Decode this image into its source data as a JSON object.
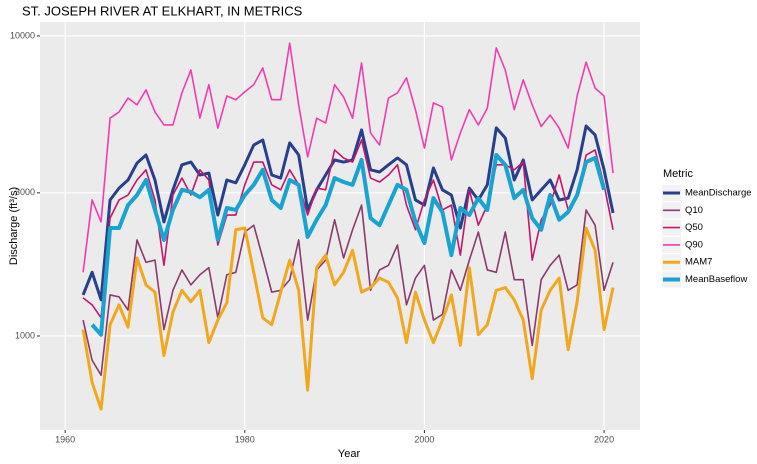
{
  "chart_data": {
    "type": "line",
    "title": "ST. JOSEPH RIVER AT ELKHART, IN  METRICS",
    "x_label": "Year",
    "y_label": "Discharge (ft³/s)",
    "legend_title": "Metric",
    "legend_position": "right",
    "yscale": "log",
    "grid": true,
    "xlim": [
      1957.2,
      2024
    ],
    "ylim": [
      486,
      11130
    ],
    "xticks": [
      1960,
      1980,
      2000,
      2020
    ],
    "yticks": [
      1000,
      3000,
      10000
    ],
    "x": [
      1962,
      1963,
      1964,
      1965,
      1966,
      1967,
      1968,
      1969,
      1970,
      1971,
      1972,
      1973,
      1974,
      1975,
      1976,
      1977,
      1978,
      1979,
      1980,
      1981,
      1982,
      1983,
      1984,
      1985,
      1986,
      1987,
      1988,
      1989,
      1990,
      1991,
      1992,
      1993,
      1994,
      1995,
      1996,
      1997,
      1998,
      1999,
      2000,
      2001,
      2002,
      2003,
      2004,
      2005,
      2006,
      2007,
      2008,
      2009,
      2010,
      2011,
      2012,
      2013,
      2014,
      2015,
      2016,
      2017,
      2018,
      2019,
      2020,
      2021
    ],
    "series": [
      {
        "name": "MeanDischarge",
        "color": "#283f8c",
        "line_width": 3,
        "values": [
          1370,
          1630,
          1320,
          2840,
          3110,
          3310,
          3770,
          4010,
          3310,
          2400,
          3070,
          3720,
          3800,
          3440,
          3490,
          2530,
          3310,
          3240,
          3720,
          4330,
          4500,
          3440,
          3360,
          4400,
          4010,
          2630,
          3070,
          3440,
          3860,
          3800,
          3860,
          4860,
          3580,
          3520,
          3720,
          3920,
          3720,
          2840,
          2730,
          3630,
          3070,
          2950,
          2290,
          3110,
          2840,
          3190,
          4940,
          4570,
          3310,
          3860,
          2840,
          3070,
          3310,
          2840,
          2880,
          3580,
          5010,
          4680,
          3580,
          2570
        ]
      },
      {
        "name": "Q10",
        "color": "#8b3a6e",
        "line_width": 1.6,
        "values": [
          1130,
          830,
          740,
          1370,
          1350,
          1220,
          2090,
          1760,
          1790,
          1050,
          1420,
          1660,
          1480,
          1600,
          1690,
          1150,
          1600,
          1630,
          2220,
          2340,
          1820,
          1400,
          1420,
          1540,
          2090,
          1130,
          1660,
          1790,
          2440,
          1820,
          2260,
          2730,
          1420,
          1660,
          1720,
          2010,
          1270,
          1560,
          1720,
          1130,
          1180,
          1660,
          1420,
          1790,
          2220,
          1660,
          1630,
          2220,
          1540,
          1540,
          930,
          1540,
          1720,
          1860,
          1420,
          1480,
          2630,
          2340,
          1420,
          1760
        ]
      },
      {
        "name": "Q50",
        "color": "#c2186b",
        "line_width": 1.6,
        "values": [
          1340,
          1270,
          1150,
          2470,
          2840,
          2950,
          3310,
          3580,
          2840,
          1720,
          2950,
          3360,
          2950,
          3580,
          3310,
          2010,
          2530,
          2530,
          3190,
          3800,
          3800,
          3190,
          3070,
          3580,
          3190,
          2530,
          3110,
          3070,
          4170,
          3920,
          3800,
          4500,
          3360,
          3260,
          3440,
          3720,
          2730,
          2260,
          2840,
          3310,
          2630,
          2730,
          1860,
          3070,
          2340,
          2730,
          3720,
          3720,
          3580,
          3800,
          1790,
          2440,
          2730,
          3440,
          2630,
          2950,
          4010,
          4170,
          3190,
          2260
        ]
      },
      {
        "name": "Q90",
        "color": "#f03cb4",
        "line_width": 1.6,
        "values": [
          1630,
          2840,
          2400,
          5320,
          5580,
          6210,
          5890,
          6610,
          5580,
          5050,
          5050,
          6460,
          7700,
          5320,
          6880,
          4930,
          6310,
          6130,
          6510,
          6880,
          7820,
          6130,
          6130,
          9460,
          5890,
          3950,
          5320,
          5130,
          6880,
          6260,
          5320,
          8130,
          4750,
          4330,
          6210,
          6460,
          7250,
          5680,
          4230,
          5980,
          5800,
          3860,
          4750,
          5680,
          5050,
          5740,
          9120,
          7700,
          5680,
          7140,
          5890,
          4990,
          5450,
          4930,
          4230,
          6310,
          8180,
          6700,
          6310,
          3490
        ]
      },
      {
        "name": "MAM7",
        "color": "#f1a81f",
        "line_width": 3,
        "values": [
          1050,
          700,
          570,
          1090,
          1270,
          1070,
          1820,
          1480,
          1400,
          860,
          1200,
          1420,
          1300,
          1420,
          950,
          1130,
          1290,
          2260,
          2290,
          1630,
          1150,
          1090,
          1400,
          1790,
          1420,
          660,
          1690,
          1860,
          1480,
          1630,
          1930,
          1400,
          1450,
          1560,
          1510,
          1340,
          950,
          1400,
          1130,
          950,
          1130,
          1370,
          930,
          1690,
          1010,
          1090,
          1420,
          1450,
          1320,
          1130,
          720,
          1220,
          1420,
          1560,
          900,
          1300,
          2290,
          1930,
          1050,
          1450
        ]
      },
      {
        "name": "MeanBaseflow",
        "color": "#1aa3d1",
        "line_width": 4,
        "values": [
          null,
          1090,
          1010,
          2290,
          2290,
          2730,
          2950,
          3310,
          2630,
          2090,
          2630,
          3070,
          3020,
          2900,
          3070,
          2090,
          2670,
          2630,
          2950,
          3190,
          3580,
          2840,
          2670,
          3310,
          3190,
          2140,
          2440,
          2730,
          3360,
          3260,
          3190,
          3860,
          2470,
          2340,
          2730,
          3190,
          3070,
          2400,
          2040,
          2880,
          2590,
          1860,
          2670,
          2530,
          2880,
          2630,
          4010,
          3720,
          2880,
          3070,
          2470,
          2260,
          2950,
          2440,
          2590,
          2950,
          3800,
          3920,
          3070,
          null
        ]
      }
    ]
  }
}
